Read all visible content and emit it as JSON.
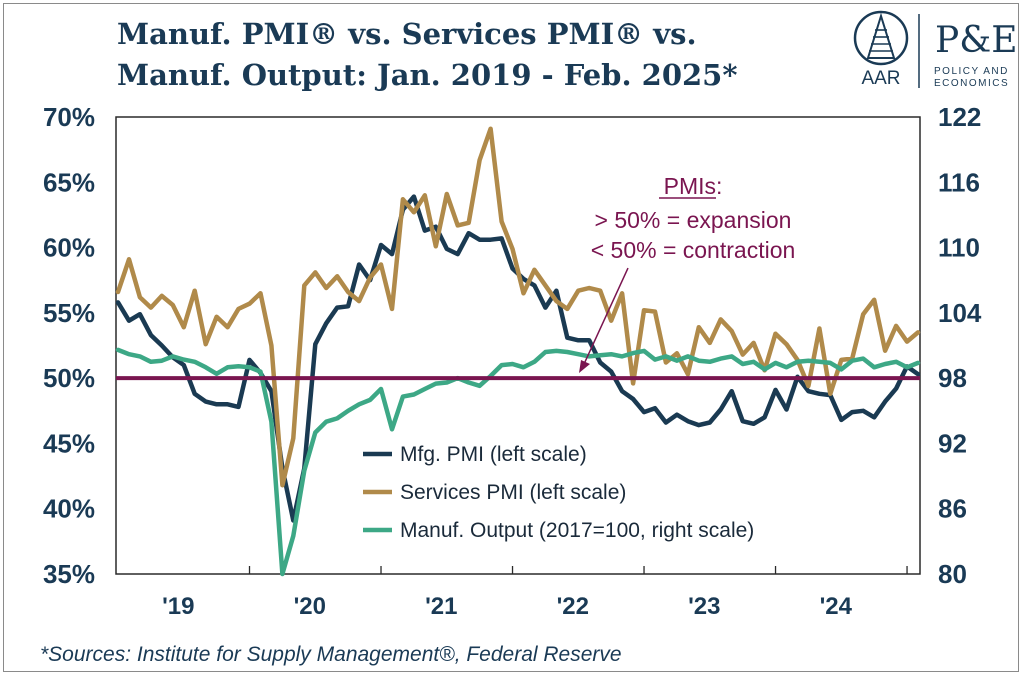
{
  "title_line1": "Manuf. PMI® vs. Services PMI® vs.",
  "title_line2": "Manuf. Output: Jan. 2019 - Feb. 2025*",
  "logo": {
    "left_text": "AAR",
    "right_big": "P&E",
    "right_small1": "POLICY AND",
    "right_small2": "ECONOMICS"
  },
  "source": "*Sources: Institute for Supply Management®, Federal Reserve",
  "annotation": {
    "title": "PMIs",
    "colon": ":",
    "line1": "> 50% = expansion",
    "line2": "< 50% = contraction"
  },
  "colors": {
    "mfg": "#1a3a52",
    "services": "#b08a4a",
    "output": "#3da886",
    "ref": "#7a1550",
    "text": "#1a3a55"
  },
  "chart_data": {
    "type": "line",
    "y_left": {
      "range": [
        35,
        70
      ],
      "ticks": [
        "35%",
        "40%",
        "45%",
        "50%",
        "55%",
        "60%",
        "65%",
        "70%"
      ],
      "values": [
        35,
        40,
        45,
        50,
        55,
        60,
        65,
        70
      ]
    },
    "y_right": {
      "range": [
        80,
        122
      ],
      "ticks": [
        "80",
        "86",
        "92",
        "98",
        "104",
        "110",
        "116",
        "122"
      ],
      "values": [
        80,
        86,
        92,
        98,
        104,
        110,
        116,
        122
      ]
    },
    "x_ticks": [
      {
        "label": "'19",
        "year": 2019
      },
      {
        "label": "'20",
        "year": 2020
      },
      {
        "label": "'21",
        "year": 2021
      },
      {
        "label": "'22",
        "year": 2022
      },
      {
        "label": "'23",
        "year": 2023
      },
      {
        "label": "'24",
        "year": 2024
      }
    ],
    "start": "2019-01",
    "end": "2025-02",
    "reference_line": 50,
    "series": [
      {
        "name": "Mfg. PMI (left scale)",
        "axis": "left",
        "color": "#1a3a52",
        "values": [
          55.8,
          54.4,
          54.9,
          53.3,
          52.5,
          51.6,
          51.0,
          48.8,
          48.2,
          48.0,
          48.0,
          47.8,
          51.4,
          50.4,
          49.0,
          43.1,
          39.1,
          43.1,
          52.6,
          54.2,
          55.4,
          55.5,
          58.7,
          57.5,
          60.2,
          59.5,
          62.9,
          63.9,
          61.3,
          61.6,
          59.9,
          59.5,
          61.1,
          60.6,
          60.6,
          60.7,
          58.4,
          57.6,
          57.1,
          55.4,
          56.7,
          53.1,
          52.9,
          52.9,
          51.2,
          50.5,
          49.0,
          48.4,
          47.4,
          47.7,
          46.6,
          47.2,
          46.7,
          46.4,
          46.6,
          47.6,
          49.0,
          46.7,
          46.5,
          47.0,
          49.1,
          47.6,
          50.1,
          49.0,
          48.8,
          48.7,
          46.8,
          47.4,
          47.5,
          47.0,
          48.2,
          49.2,
          50.9,
          50.3
        ]
      },
      {
        "name": "Services PMI (left scale)",
        "axis": "left",
        "color": "#b08a4a",
        "values": [
          56.6,
          59.1,
          56.2,
          55.4,
          56.3,
          55.6,
          53.9,
          56.7,
          52.6,
          54.7,
          53.9,
          55.3,
          55.7,
          56.5,
          52.5,
          41.8,
          45.4,
          57.1,
          58.1,
          56.9,
          57.8,
          56.6,
          55.9,
          57.7,
          58.7,
          55.3,
          63.7,
          62.7,
          64.0,
          60.1,
          64.1,
          61.7,
          61.9,
          66.7,
          69.1,
          62.0,
          59.9,
          56.5,
          58.3,
          57.1,
          55.9,
          55.3,
          56.7,
          56.9,
          56.7,
          54.4,
          56.5,
          49.6,
          55.2,
          55.1,
          51.2,
          51.9,
          50.3,
          53.9,
          52.7,
          54.5,
          53.6,
          51.8,
          52.7,
          50.6,
          53.4,
          52.6,
          51.4,
          49.4,
          53.8,
          48.8,
          51.4,
          51.5,
          54.9,
          56.0,
          52.1,
          54.0,
          52.8,
          53.5
        ]
      },
      {
        "name": "Manuf. Output (2017=100, right scale)",
        "axis": "right",
        "color": "#3da886",
        "values": [
          100.6,
          100.2,
          100.0,
          99.5,
          99.6,
          100.0,
          99.7,
          99.5,
          99.0,
          98.4,
          99.0,
          99.1,
          99.0,
          98.6,
          94.0,
          80.0,
          83.5,
          89.5,
          93.0,
          94.0,
          94.3,
          95.0,
          95.6,
          96.0,
          97.0,
          93.3,
          96.3,
          96.5,
          97.0,
          97.5,
          97.6,
          98.0,
          97.6,
          97.3,
          98.2,
          99.2,
          99.3,
          99.0,
          99.5,
          100.4,
          100.5,
          100.4,
          100.2,
          100.0,
          100.1,
          100.2,
          100.0,
          100.3,
          100.5,
          99.7,
          100.0,
          99.6,
          100.0,
          99.6,
          99.5,
          99.8,
          100.0,
          99.3,
          99.5,
          98.8,
          99.4,
          99.0,
          99.5,
          99.6,
          99.5,
          99.4,
          98.8,
          99.6,
          99.8,
          99.0,
          99.3,
          99.5,
          99.0,
          99.4
        ]
      }
    ],
    "legend_placement": "bottom-center inside plot"
  }
}
